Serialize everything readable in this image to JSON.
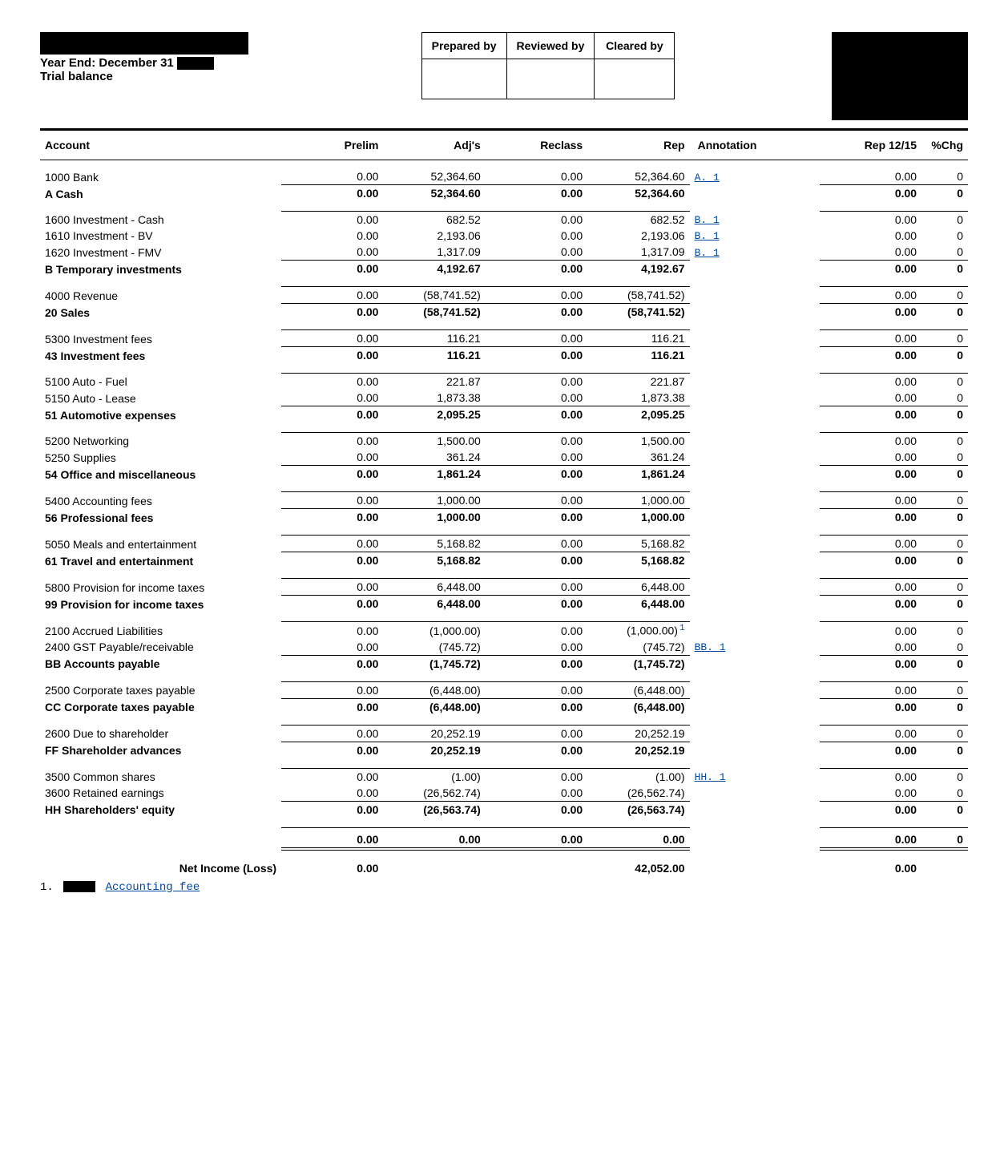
{
  "header": {
    "year_end_label": "Year End: December 31",
    "subtitle": "Trial balance",
    "sign_cols": [
      "Prepared by",
      "Reviewed by",
      "Cleared by"
    ]
  },
  "columns": {
    "account": "Account",
    "prelim": "Prelim",
    "adjs": "Adj's",
    "reclass": "Reclass",
    "rep": "Rep",
    "annotation": "Annotation",
    "rep1215": "Rep 12/15",
    "pchg": "%Chg"
  },
  "groups": [
    {
      "rows": [
        {
          "acct": "1000 Bank",
          "prelim": "0.00",
          "adjs": "52,364.60",
          "reclass": "0.00",
          "rep": "52,364.60",
          "ann": "A. 1",
          "rep1215": "0.00",
          "chg": "0",
          "last": true
        }
      ],
      "sub": {
        "acct": "A   Cash",
        "prelim": "0.00",
        "adjs": "52,364.60",
        "reclass": "0.00",
        "rep": "52,364.60",
        "rep1215": "0.00",
        "chg": "0"
      }
    },
    {
      "rows": [
        {
          "acct": "1600 Investment - Cash",
          "prelim": "0.00",
          "adjs": "682.52",
          "reclass": "0.00",
          "rep": "682.52",
          "ann": "B. 1",
          "rep1215": "0.00",
          "chg": "0"
        },
        {
          "acct": "1610 Investment - BV",
          "prelim": "0.00",
          "adjs": "2,193.06",
          "reclass": "0.00",
          "rep": "2,193.06",
          "ann": "B. 1",
          "rep1215": "0.00",
          "chg": "0"
        },
        {
          "acct": "1620 Investment - FMV",
          "prelim": "0.00",
          "adjs": "1,317.09",
          "reclass": "0.00",
          "rep": "1,317.09",
          "ann": "B. 1",
          "rep1215": "0.00",
          "chg": "0",
          "last": true
        }
      ],
      "sub": {
        "acct": "B   Temporary investments",
        "prelim": "0.00",
        "adjs": "4,192.67",
        "reclass": "0.00",
        "rep": "4,192.67",
        "rep1215": "0.00",
        "chg": "0"
      }
    },
    {
      "rows": [
        {
          "acct": "4000 Revenue",
          "prelim": "0.00",
          "adjs": "(58,741.52)",
          "reclass": "0.00",
          "rep": "(58,741.52)",
          "rep1215": "0.00",
          "chg": "0",
          "last": true
        }
      ],
      "sub": {
        "acct": "20   Sales",
        "prelim": "0.00",
        "adjs": "(58,741.52)",
        "reclass": "0.00",
        "rep": "(58,741.52)",
        "rep1215": "0.00",
        "chg": "0"
      }
    },
    {
      "rows": [
        {
          "acct": "5300 Investment fees",
          "prelim": "0.00",
          "adjs": "116.21",
          "reclass": "0.00",
          "rep": "116.21",
          "rep1215": "0.00",
          "chg": "0",
          "last": true
        }
      ],
      "sub": {
        "acct": "43   Investment fees",
        "prelim": "0.00",
        "adjs": "116.21",
        "reclass": "0.00",
        "rep": "116.21",
        "rep1215": "0.00",
        "chg": "0"
      }
    },
    {
      "rows": [
        {
          "acct": "5100 Auto - Fuel",
          "prelim": "0.00",
          "adjs": "221.87",
          "reclass": "0.00",
          "rep": "221.87",
          "rep1215": "0.00",
          "chg": "0"
        },
        {
          "acct": "5150 Auto - Lease",
          "prelim": "0.00",
          "adjs": "1,873.38",
          "reclass": "0.00",
          "rep": "1,873.38",
          "rep1215": "0.00",
          "chg": "0",
          "last": true
        }
      ],
      "sub": {
        "acct": "51   Automotive expenses",
        "prelim": "0.00",
        "adjs": "2,095.25",
        "reclass": "0.00",
        "rep": "2,095.25",
        "rep1215": "0.00",
        "chg": "0"
      }
    },
    {
      "rows": [
        {
          "acct": "5200 Networking",
          "prelim": "0.00",
          "adjs": "1,500.00",
          "reclass": "0.00",
          "rep": "1,500.00",
          "rep1215": "0.00",
          "chg": "0"
        },
        {
          "acct": "5250 Supplies",
          "prelim": "0.00",
          "adjs": "361.24",
          "reclass": "0.00",
          "rep": "361.24",
          "rep1215": "0.00",
          "chg": "0",
          "last": true
        }
      ],
      "sub": {
        "acct": "54   Office and miscellaneous",
        "prelim": "0.00",
        "adjs": "1,861.24",
        "reclass": "0.00",
        "rep": "1,861.24",
        "rep1215": "0.00",
        "chg": "0"
      }
    },
    {
      "rows": [
        {
          "acct": "5400 Accounting fees",
          "prelim": "0.00",
          "adjs": "1,000.00",
          "reclass": "0.00",
          "rep": "1,000.00",
          "rep1215": "0.00",
          "chg": "0",
          "last": true
        }
      ],
      "sub": {
        "acct": "56   Professional fees",
        "prelim": "0.00",
        "adjs": "1,000.00",
        "reclass": "0.00",
        "rep": "1,000.00",
        "rep1215": "0.00",
        "chg": "0"
      }
    },
    {
      "rows": [
        {
          "acct": "5050 Meals and entertainment",
          "prelim": "0.00",
          "adjs": "5,168.82",
          "reclass": "0.00",
          "rep": "5,168.82",
          "rep1215": "0.00",
          "chg": "0",
          "last": true
        }
      ],
      "sub": {
        "acct": "61   Travel and entertainment",
        "prelim": "0.00",
        "adjs": "5,168.82",
        "reclass": "0.00",
        "rep": "5,168.82",
        "rep1215": "0.00",
        "chg": "0"
      }
    },
    {
      "rows": [
        {
          "acct": "5800 Provision for income taxes",
          "prelim": "0.00",
          "adjs": "6,448.00",
          "reclass": "0.00",
          "rep": "6,448.00",
          "rep1215": "0.00",
          "chg": "0",
          "last": true
        }
      ],
      "sub": {
        "acct": "99   Provision for income taxes",
        "prelim": "0.00",
        "adjs": "6,448.00",
        "reclass": "0.00",
        "rep": "6,448.00",
        "rep1215": "0.00",
        "chg": "0"
      }
    },
    {
      "rows": [
        {
          "acct": "2100 Accrued Liabilities",
          "prelim": "0.00",
          "adjs": "(1,000.00)",
          "reclass": "0.00",
          "rep": "(1,000.00)",
          "sup": "1",
          "rep1215": "0.00",
          "chg": "0"
        },
        {
          "acct": "2400 GST Payable/receivable",
          "prelim": "0.00",
          "adjs": "(745.72)",
          "reclass": "0.00",
          "rep": "(745.72)",
          "ann": "BB. 1",
          "rep1215": "0.00",
          "chg": "0",
          "last": true
        }
      ],
      "sub": {
        "acct": "BB   Accounts payable",
        "prelim": "0.00",
        "adjs": "(1,745.72)",
        "reclass": "0.00",
        "rep": "(1,745.72)",
        "rep1215": "0.00",
        "chg": "0"
      }
    },
    {
      "rows": [
        {
          "acct": "2500 Corporate taxes payable",
          "prelim": "0.00",
          "adjs": "(6,448.00)",
          "reclass": "0.00",
          "rep": "(6,448.00)",
          "rep1215": "0.00",
          "chg": "0",
          "last": true
        }
      ],
      "sub": {
        "acct": "CC   Corporate taxes payable",
        "prelim": "0.00",
        "adjs": "(6,448.00)",
        "reclass": "0.00",
        "rep": "(6,448.00)",
        "rep1215": "0.00",
        "chg": "0"
      }
    },
    {
      "rows": [
        {
          "acct": "2600 Due to shareholder",
          "prelim": "0.00",
          "adjs": "20,252.19",
          "reclass": "0.00",
          "rep": "20,252.19",
          "rep1215": "0.00",
          "chg": "0",
          "last": true
        }
      ],
      "sub": {
        "acct": "FF   Shareholder advances",
        "prelim": "0.00",
        "adjs": "20,252.19",
        "reclass": "0.00",
        "rep": "20,252.19",
        "rep1215": "0.00",
        "chg": "0"
      }
    },
    {
      "rows": [
        {
          "acct": "3500 Common shares",
          "prelim": "0.00",
          "adjs": "(1.00)",
          "reclass": "0.00",
          "rep": "(1.00)",
          "ann": "HH. 1",
          "rep1215": "0.00",
          "chg": "0"
        },
        {
          "acct": "3600 Retained earnings",
          "prelim": "0.00",
          "adjs": "(26,562.74)",
          "reclass": "0.00",
          "rep": "(26,562.74)",
          "rep1215": "0.00",
          "chg": "0",
          "last": true
        }
      ],
      "sub": {
        "acct": "HH   Shareholders' equity",
        "prelim": "0.00",
        "adjs": "(26,563.74)",
        "reclass": "0.00",
        "rep": "(26,563.74)",
        "rep1215": "0.00",
        "chg": "0"
      }
    }
  ],
  "grand": {
    "prelim": "0.00",
    "adjs": "0.00",
    "reclass": "0.00",
    "rep": "0.00",
    "rep1215": "0.00",
    "chg": "0"
  },
  "net": {
    "label": "Net Income (Loss)",
    "prelim": "0.00",
    "rep": "42,052.00",
    "rep1215": "0.00"
  },
  "footnote": {
    "num": "1.",
    "text": "Accounting fee"
  }
}
